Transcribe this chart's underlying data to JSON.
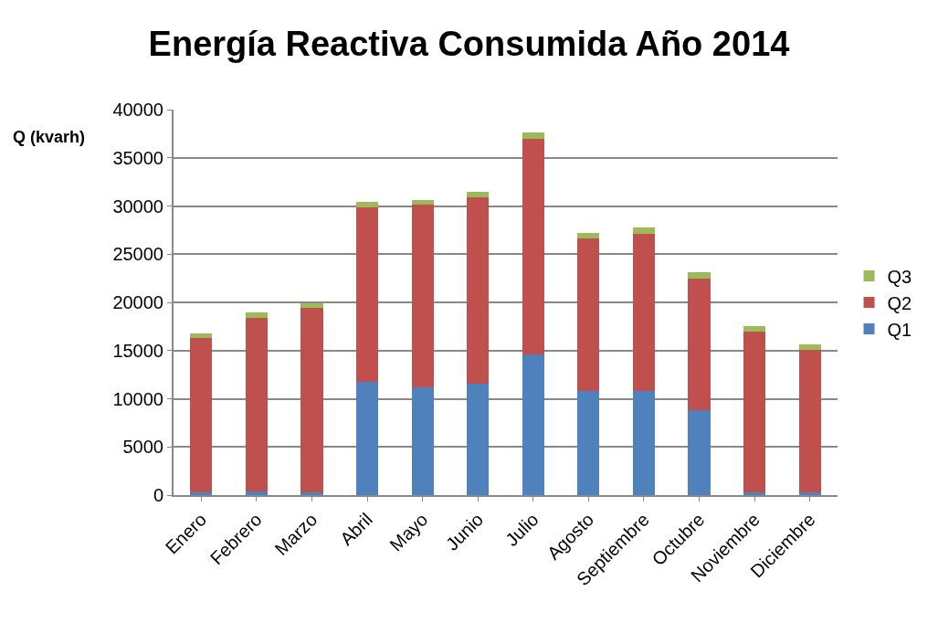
{
  "chart_data": {
    "type": "bar",
    "title": "Energía Reactiva Consumida Año 2014",
    "ylabel": "Q (kvarh)",
    "categories": [
      "Enero",
      "Febrero",
      "Marzo",
      "Abril",
      "Mayo",
      "Junio",
      "Julio",
      "Agosto",
      "Septiembre",
      "Octubre",
      "Noviembre",
      "Diciembre"
    ],
    "stacked": true,
    "series": [
      {
        "name": "Q1",
        "color": "#4f81bd",
        "values": [
          300,
          400,
          300,
          11800,
          11200,
          11600,
          14600,
          10800,
          10800,
          8800,
          300,
          300
        ]
      },
      {
        "name": "Q2",
        "color": "#c0504d",
        "values": [
          16000,
          18000,
          19100,
          18100,
          18900,
          19300,
          22400,
          15800,
          16300,
          13700,
          16700,
          14800
        ]
      },
      {
        "name": "Q3",
        "color": "#9bbb59",
        "values": [
          500,
          600,
          500,
          500,
          500,
          600,
          600,
          600,
          700,
          600,
          500,
          500
        ]
      }
    ],
    "ylim": [
      0,
      40000
    ],
    "yticks": [
      0,
      5000,
      10000,
      15000,
      20000,
      25000,
      30000,
      35000,
      40000
    ],
    "grid": "y",
    "legend": "right"
  }
}
